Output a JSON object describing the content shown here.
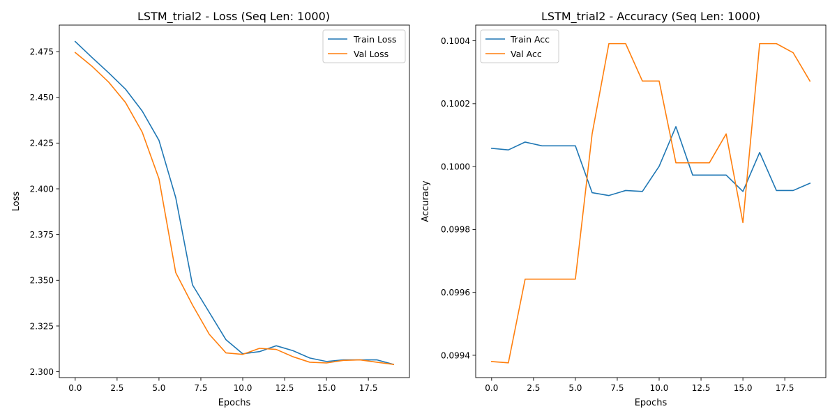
{
  "colors": {
    "train": "#1f77b4",
    "val": "#ff7f0e"
  },
  "chart_data": [
    {
      "type": "line",
      "title": "LSTM_trial2 - Loss (Seq Len: 1000)",
      "xlabel": "Epochs",
      "ylabel": "Loss",
      "xlim": [
        -0.95,
        19.95
      ],
      "ylim": [
        2.2968,
        2.4895
      ],
      "xticks": [
        0,
        2.5,
        5,
        7.5,
        10,
        12.5,
        15,
        17.5
      ],
      "xtick_labels": [
        "0.0",
        "2.5",
        "5.0",
        "7.5",
        "10.0",
        "12.5",
        "15.0",
        "17.5"
      ],
      "yticks": [
        2.3,
        2.325,
        2.35,
        2.375,
        2.4,
        2.425,
        2.45,
        2.475
      ],
      "ytick_labels": [
        "2.300",
        "2.325",
        "2.350",
        "2.375",
        "2.400",
        "2.425",
        "2.450",
        "2.475"
      ],
      "legend_position": "top-right",
      "x": [
        0,
        1,
        2,
        3,
        4,
        5,
        6,
        7,
        8,
        9,
        10,
        11,
        12,
        13,
        14,
        15,
        16,
        17,
        18,
        19
      ],
      "series": [
        {
          "name": "Train Loss",
          "color": "#1f77b4",
          "values": [
            2.4805,
            2.4718,
            2.4634,
            2.4545,
            2.4425,
            2.4265,
            2.3952,
            2.3475,
            2.3325,
            2.3175,
            2.3098,
            2.311,
            2.3142,
            2.3115,
            2.3075,
            2.3056,
            2.3065,
            2.3065,
            2.3065,
            2.304
          ]
        },
        {
          "name": "Val Loss",
          "color": "#ff7f0e",
          "values": [
            2.4745,
            2.467,
            2.4583,
            2.4472,
            2.431,
            2.4055,
            2.3542,
            2.3365,
            2.3205,
            2.3103,
            2.3095,
            2.3128,
            2.3122,
            2.3082,
            2.3052,
            2.3048,
            2.3062,
            2.3065,
            2.3052,
            2.304
          ]
        }
      ]
    },
    {
      "type": "line",
      "title": "LSTM_trial2 - Accuracy (Seq Len: 1000)",
      "xlabel": "Epochs",
      "ylabel": "Accuracy",
      "xlim": [
        -0.95,
        19.95
      ],
      "ylim": [
        0.099329,
        0.10045
      ],
      "xticks": [
        0,
        2.5,
        5,
        7.5,
        10,
        12.5,
        15,
        17.5
      ],
      "xtick_labels": [
        "0.0",
        "2.5",
        "5.0",
        "7.5",
        "10.0",
        "12.5",
        "15.0",
        "17.5"
      ],
      "yticks": [
        0.0994,
        0.0996,
        0.0998,
        0.1,
        0.1002,
        0.1004
      ],
      "ytick_labels": [
        "0.0994",
        "0.0996",
        "0.0998",
        "0.1000",
        "0.1002",
        "0.1004"
      ],
      "legend_position": "top-left",
      "x": [
        0,
        1,
        2,
        3,
        4,
        5,
        6,
        7,
        8,
        9,
        10,
        11,
        12,
        13,
        14,
        15,
        16,
        17,
        18,
        19
      ],
      "series": [
        {
          "name": "Train Acc",
          "color": "#1f77b4",
          "values": [
            0.100058,
            0.100053,
            0.100078,
            0.100066,
            0.100066,
            0.100066,
            0.099917,
            0.099908,
            0.099924,
            0.099921,
            0.100001,
            0.100127,
            0.099973,
            0.099973,
            0.099973,
            0.099921,
            0.100045,
            0.099924,
            0.099924,
            0.099947
          ]
        },
        {
          "name": "Val Acc",
          "color": "#ff7f0e",
          "values": [
            0.09938,
            0.099376,
            0.099642,
            0.099642,
            0.099642,
            0.099642,
            0.100104,
            0.100391,
            0.100391,
            0.100272,
            0.100272,
            0.100012,
            0.100012,
            0.100012,
            0.100104,
            0.099822,
            0.100391,
            0.100391,
            0.100362,
            0.100272
          ]
        }
      ]
    }
  ]
}
